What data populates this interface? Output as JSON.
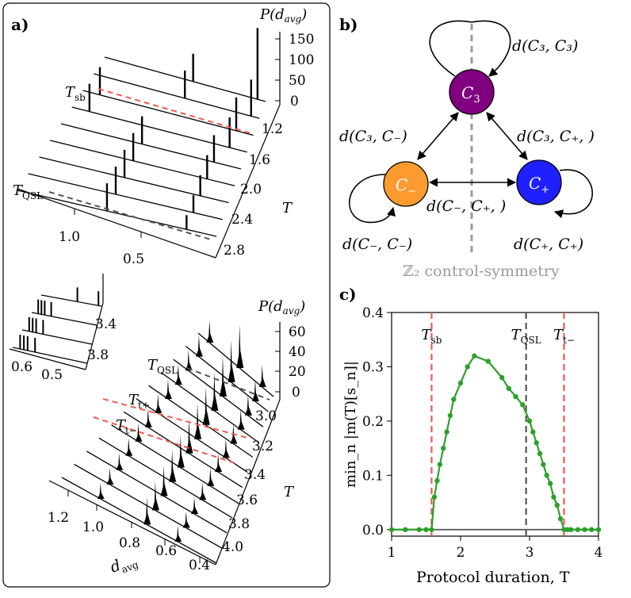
{
  "panels": {
    "a": "a)",
    "b": "b)",
    "c": "c)"
  },
  "colors": {
    "red": "#f05a50",
    "dark_gray": "#555555",
    "light_gray": "#9a9a9a",
    "green": "#2ca02c",
    "purple": "#800080",
    "orange": "#ff9a30",
    "blue": "#2020ff"
  },
  "panel_a": {
    "top": {
      "z_label_P": "P(",
      "z_label_d": "d",
      "z_label_sub": "avg",
      "z_label_close": ")",
      "z_ticks": [
        "150",
        "100",
        "50",
        "0"
      ],
      "t_ticks": [
        "1.2",
        "1.6",
        "2.0",
        "2.4",
        "2.8"
      ],
      "t_axis_label": "T",
      "d_ticks": [
        "1.0",
        "0.5"
      ],
      "marker_sb": "T",
      "marker_sb_sub": "sb",
      "marker_qsl": "T",
      "marker_qsl_sub": "QSL",
      "T_values": [
        1.2,
        1.4,
        1.6,
        1.8,
        2.0,
        2.2,
        2.4,
        2.6,
        2.8
      ]
    },
    "inset": {
      "t_ticks": [
        "3.4",
        "3.8"
      ],
      "d_ticks": [
        "0.6",
        "0.5"
      ]
    },
    "bottom": {
      "z_label_P": "P(",
      "z_label_d": "d",
      "z_label_sub": "avg",
      "z_label_close": ")",
      "z_ticks": [
        "60",
        "40",
        "20",
        "0"
      ],
      "t_ticks": [
        "3.0",
        "3.2",
        "3.4",
        "3.6",
        "3.8",
        "4.0"
      ],
      "t_axis_label": "T",
      "d_ticks": [
        "1.2",
        "1.0",
        "0.8",
        "0.6",
        "0.4"
      ],
      "d_axis_label": "d",
      "d_axis_sub": "avg",
      "marker_qsl": "T",
      "marker_qsl_sub": "QSL",
      "marker_tp": "T",
      "marker_tp_sub": "t+",
      "marker_tm": "T",
      "marker_tm_sub": "t−",
      "T_values": [
        2.9,
        3.0,
        3.1,
        3.2,
        3.3,
        3.4,
        3.5,
        3.6,
        3.7,
        3.8,
        3.9,
        4.0
      ]
    }
  },
  "panel_b": {
    "nodes": {
      "c3": {
        "main": "C",
        "sub": "3"
      },
      "cm": {
        "main": "C",
        "sub": "−"
      },
      "cp": {
        "main": "C",
        "sub": "+"
      }
    },
    "edges": {
      "c3_self": "d(C₃, C₃)",
      "c3_cm": "d(C₃, C₋)",
      "c3_cp": "d(C₃, C₊, )",
      "cm_cp": "d(C₋, C₊, )",
      "cm_self": "d(C₋, C₋)",
      "cp_self": "d(C₊, C₊)"
    },
    "symmetry_label": "ℤ₂ control-symmetry"
  },
  "chart_data": {
    "type": "line",
    "title": "",
    "xlabel": "Protocol duration, T",
    "ylabel": "min_n |m(T)[s_n]|",
    "xlim": [
      1,
      4
    ],
    "ylim": [
      -0.012,
      0.4
    ],
    "x_ticks": [
      "1",
      "2",
      "3",
      "4"
    ],
    "y_ticks": [
      "0.0",
      "0.1",
      "0.2",
      "0.3",
      "0.4"
    ],
    "series": [
      {
        "name": "min_n |m(T)[s_n]|",
        "color": "#2ca02c",
        "x": [
          1.0,
          1.2,
          1.4,
          1.5,
          1.58,
          1.62,
          1.66,
          1.7,
          1.75,
          1.8,
          1.85,
          1.9,
          2.0,
          2.1,
          2.2,
          2.4,
          2.6,
          2.7,
          2.8,
          2.9,
          3.0,
          3.05,
          3.1,
          3.15,
          3.2,
          3.25,
          3.3,
          3.35,
          3.4,
          3.45,
          3.5,
          3.55,
          3.6,
          3.7,
          3.8,
          3.9,
          4.0
        ],
        "y": [
          0.0,
          0.0,
          0.0,
          0.0,
          0.0,
          0.06,
          0.09,
          0.12,
          0.15,
          0.18,
          0.21,
          0.24,
          0.27,
          0.3,
          0.32,
          0.31,
          0.28,
          0.26,
          0.245,
          0.23,
          0.2,
          0.18,
          0.16,
          0.14,
          0.12,
          0.1,
          0.085,
          0.06,
          0.045,
          0.02,
          0.0,
          0.0,
          0.0,
          0.0,
          0.0,
          0.0,
          0.0
        ]
      }
    ],
    "vlines": [
      {
        "x": 1.58,
        "label_main": "T",
        "label_sub": "sb",
        "color": "#f05a50"
      },
      {
        "x": 2.95,
        "label_main": "T",
        "label_sub": "QSL",
        "color": "#555555"
      },
      {
        "x": 3.5,
        "label_main": "T",
        "label_sub": "t−",
        "color": "#f05a50"
      }
    ],
    "grid": false
  }
}
